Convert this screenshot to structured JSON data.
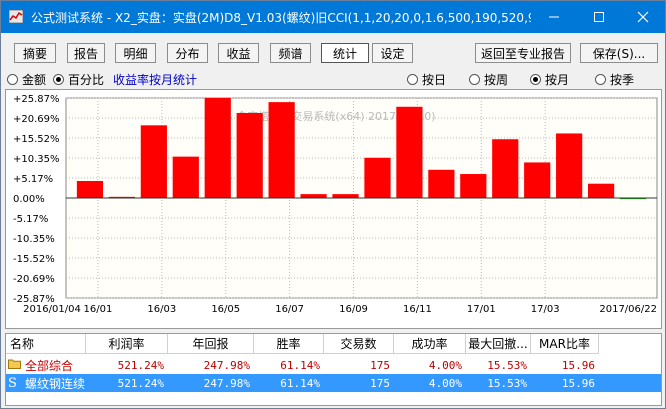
{
  "window": {
    "title": "公式测试系统 - X2_实盘：实盘(2M)D8_V1.03(螺纹)旧CCI(1,1,20,20,0,1.6,500,190,520,99..."
  },
  "toolbar": {
    "tabs": [
      "摘要",
      "报告",
      "明细",
      "分布",
      "收益",
      "频谱",
      "统计",
      "设定"
    ],
    "active_tab": "统计",
    "back_button": "返回至专业报告",
    "save_button": "保存(S)..."
  },
  "options": {
    "amount_label": "金额",
    "percent_label": "百分比",
    "percent_selected": true,
    "stat_title": "收益率按月统计",
    "day_label": "按日",
    "week_label": "按周",
    "month_label": "按月",
    "month_selected": true,
    "season_label": "按季"
  },
  "chart": {
    "watermark": "金字塔决策交易系统(x64) 2017(v4.10)",
    "bar_color": "#ff0000",
    "neg_color": "#00aa00"
  },
  "chart_data": {
    "type": "bar",
    "title": "",
    "xlabel": "",
    "ylabel": "",
    "ylim": [
      -25.87,
      25.87
    ],
    "y_ticks": [
      "+25.87%",
      "+20.69%",
      "+15.52%",
      "+10.35%",
      "+5.17%",
      "0.00%",
      "-5.17%",
      "-10.35%",
      "-15.52%",
      "-20.69%",
      "-25.87%"
    ],
    "x_tick_labels": [
      "2016/01/04",
      "16/01",
      "16/03",
      "16/05",
      "16/07",
      "16/09",
      "16/11",
      "17/01",
      "17/03",
      "2017/06/22"
    ],
    "categories": [
      "16/01",
      "16/02",
      "16/03",
      "16/04",
      "16/05",
      "16/06",
      "16/07",
      "16/08",
      "16/09",
      "16/10",
      "16/11",
      "16/12",
      "17/01",
      "17/02",
      "17/03",
      "17/04",
      "17/05",
      "17/06"
    ],
    "values": [
      4.4,
      0.3,
      18.8,
      10.7,
      25.9,
      22.0,
      24.8,
      1.0,
      1.0,
      10.4,
      23.6,
      7.3,
      6.2,
      15.2,
      9.2,
      16.7,
      3.7,
      -0.3
    ],
    "grid": true
  },
  "table": {
    "columns": [
      "名称",
      "利润率",
      "年回报",
      "胜率",
      "交易数",
      "成功率",
      "最大回撤...",
      "MAR比率"
    ],
    "rows": [
      {
        "icon": "folder-icon",
        "name": "全部综合",
        "values": [
          "521.24%",
          "247.98%",
          "61.14%",
          "175",
          "4.00%",
          "15.53%",
          "15.96"
        ],
        "selected": false
      },
      {
        "icon": "strategy-s-icon",
        "name": "螺纹钢连续",
        "values": [
          "521.24%",
          "247.98%",
          "61.14%",
          "175",
          "4.00%",
          "15.53%",
          "15.96"
        ],
        "selected": true
      }
    ]
  }
}
